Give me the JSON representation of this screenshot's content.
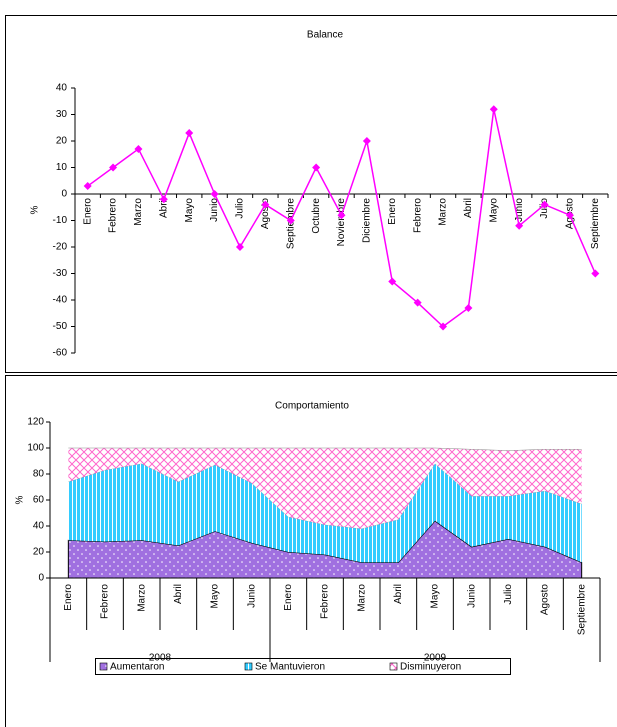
{
  "chart_data": [
    {
      "type": "line",
      "title": "Balance",
      "y_label": "%",
      "categories": [
        "Enero",
        "Febrero",
        "Marzo",
        "Abril",
        "Mayo",
        "Junio",
        "Julio",
        "Agosto",
        "Septiembre",
        "Octubre",
        "Noviembre",
        "Diciembre",
        "Enero",
        "Febrero",
        "Marzo",
        "Abril",
        "Mayo",
        "Junio",
        "Julio",
        "Agosto",
        "Septiembre"
      ],
      "values": [
        3,
        10,
        17,
        -2,
        23,
        0,
        -20,
        -4,
        -10,
        10,
        -8,
        20,
        -33,
        -41,
        -50,
        -43,
        32,
        -12,
        -4,
        -8,
        -30
      ],
      "color": "#ff00ff",
      "ylim": [
        -60,
        40
      ],
      "yticks": [
        -60,
        -50,
        -40,
        -30,
        -20,
        -10,
        0,
        10,
        20,
        30,
        40
      ],
      "grid": false
    },
    {
      "type": "stacked_area",
      "title": "Comportamiento",
      "y_label": "%",
      "groups": [
        {
          "label": "2008",
          "categories": [
            "Enero",
            "Febrero",
            "Marzo",
            "Abril",
            "Mayo",
            "Junio"
          ]
        },
        {
          "label": "2009",
          "categories": [
            "Enero",
            "Febrero",
            "Marzo",
            "Abril",
            "Mayo",
            "Junio",
            "Julio",
            "Agosto",
            "Septiembre"
          ]
        }
      ],
      "series": [
        {
          "name": "Aumentaron",
          "color": "#a070e0",
          "values": [
            29,
            28,
            29,
            25,
            36,
            27,
            20,
            18,
            12,
            12,
            44,
            24,
            30,
            24,
            12
          ]
        },
        {
          "name": "Se Mantuvieron",
          "color": "#33ccff",
          "values": [
            45,
            55,
            59,
            49,
            51,
            46,
            27,
            23,
            26,
            33,
            44,
            39,
            33,
            43,
            45
          ]
        },
        {
          "name": "Disminuyeron",
          "color": "#ff66cc",
          "values": [
            26,
            17,
            12,
            26,
            13,
            27,
            53,
            59,
            62,
            55,
            12,
            36,
            35,
            32,
            42
          ]
        }
      ],
      "ylim": [
        0,
        120
      ],
      "yticks": [
        0,
        20,
        40,
        60,
        80,
        100,
        120
      ],
      "grid": false,
      "legend": "bottom"
    }
  ]
}
